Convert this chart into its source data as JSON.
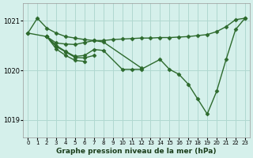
{
  "background_color": "#d5f0eb",
  "grid_color": "#b0d8d0",
  "line_color": "#2d6a2d",
  "marker_style": "D",
  "marker_size": 2.5,
  "linewidth": 1.0,
  "xlim": [
    -0.5,
    23.5
  ],
  "ylim": [
    1018.65,
    1021.35
  ],
  "yticks": [
    1019,
    1020,
    1021
  ],
  "ytick_labels": [
    "1019",
    "1020",
    "1021"
  ],
  "xticks": [
    0,
    1,
    2,
    3,
    4,
    5,
    6,
    7,
    8,
    9,
    10,
    11,
    12,
    13,
    14,
    15,
    16,
    17,
    18,
    19,
    20,
    21,
    22,
    23
  ],
  "xlabel": "Graphe pression niveau de la mer (hPa)",
  "series": [
    {
      "x": [
        0,
        1,
        2,
        3,
        4,
        5,
        6,
        7,
        8,
        9,
        10,
        11,
        12,
        13,
        14,
        15,
        16,
        17,
        18,
        19,
        20,
        21,
        22,
        23
      ],
      "y": [
        1020.75,
        1021.05,
        1020.85,
        1020.75,
        1020.68,
        1020.65,
        1020.62,
        1020.6,
        1020.6,
        1020.62,
        1020.63,
        1020.64,
        1020.65,
        1020.65,
        1020.66,
        1020.66,
        1020.67,
        1020.68,
        1020.7,
        1020.72,
        1020.78,
        1020.88,
        1021.02,
        1021.05
      ]
    },
    {
      "x": [
        0,
        2,
        3,
        4,
        5,
        6,
        7,
        8,
        12
      ],
      "y": [
        1020.75,
        1020.68,
        1020.55,
        1020.53,
        1020.52,
        1020.56,
        1020.6,
        1020.57,
        1020.05
      ]
    },
    {
      "x": [
        2,
        3,
        4,
        5,
        6,
        7,
        8,
        10,
        11,
        12,
        14,
        15,
        16,
        17,
        18,
        19,
        20,
        21,
        22,
        23
      ],
      "y": [
        1020.68,
        1020.5,
        1020.38,
        1020.28,
        1020.3,
        1020.42,
        1020.4,
        1020.02,
        1020.02,
        1020.02,
        1020.22,
        1020.02,
        1019.92,
        1019.72,
        1019.42,
        1019.12,
        1019.58,
        1020.22,
        1020.82,
        1021.05
      ]
    },
    {
      "x": [
        2,
        3,
        4,
        5,
        6,
        7
      ],
      "y": [
        1020.68,
        1020.48,
        1020.37,
        1020.26,
        1020.25,
        1020.3
      ]
    },
    {
      "x": [
        2,
        3,
        4,
        5,
        6
      ],
      "y": [
        1020.68,
        1020.43,
        1020.3,
        1020.2,
        1020.18
      ]
    }
  ]
}
